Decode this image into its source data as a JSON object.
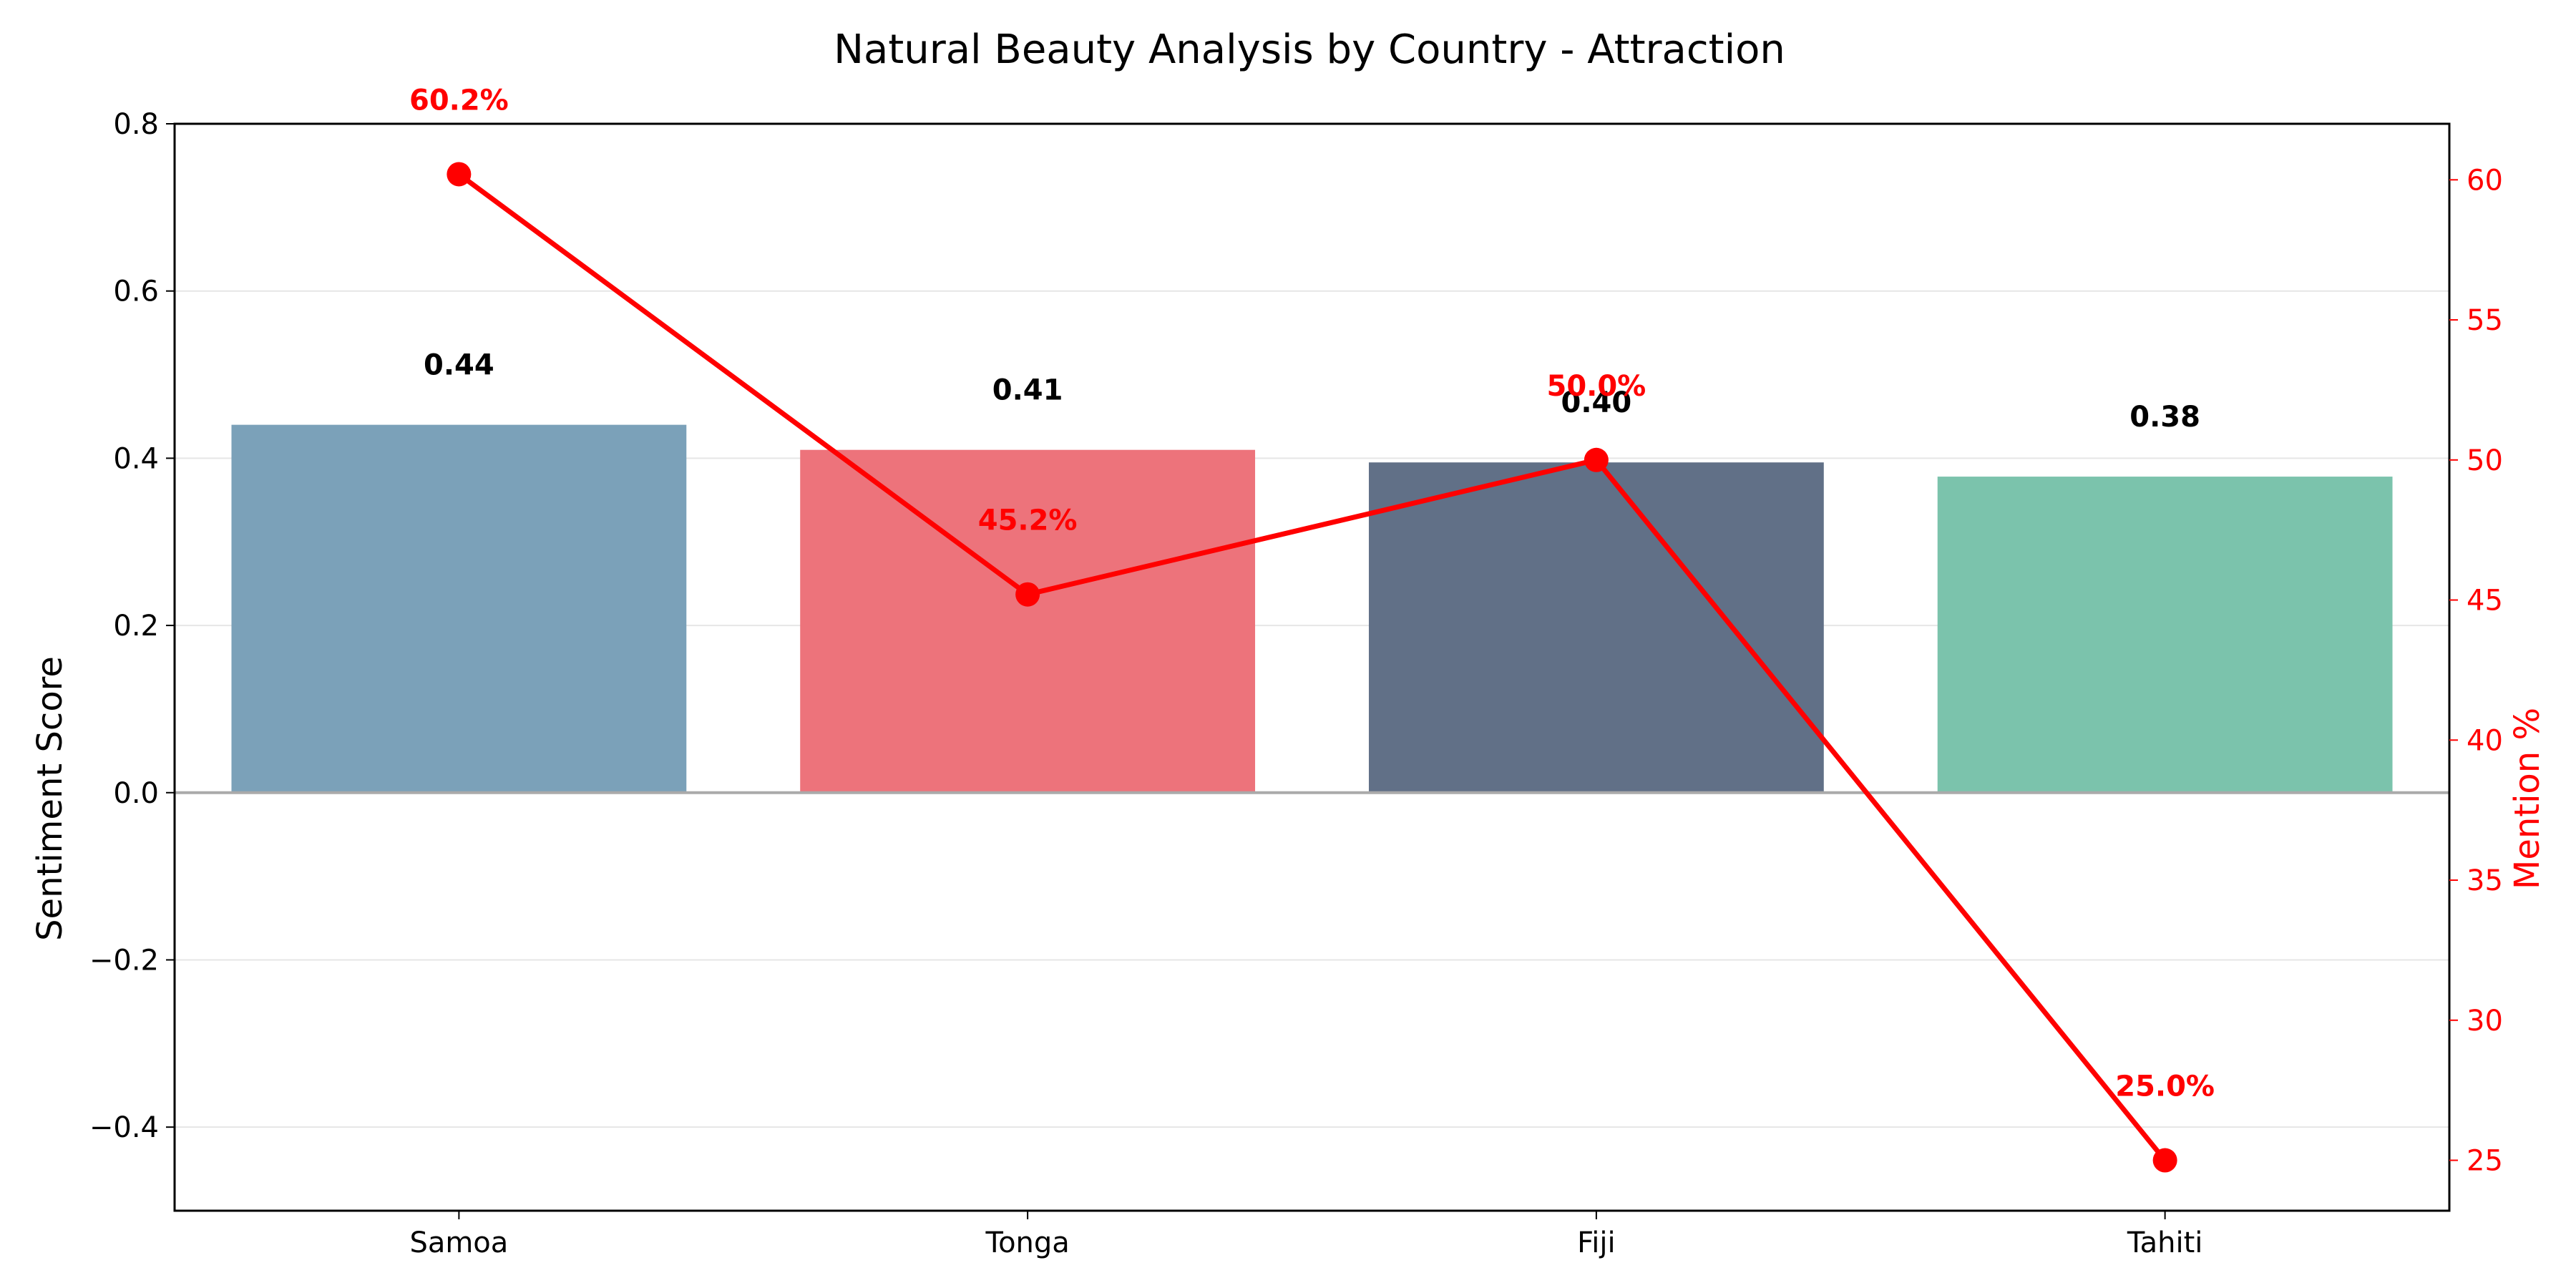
{
  "chart_data": {
    "type": "bar",
    "title": "Natural Beauty Analysis by Country - Attraction",
    "categories": [
      "Samoa",
      "Tonga",
      "Fiji",
      "Tahiti"
    ],
    "ylabel": "Sentiment Score",
    "ylabel_right": "Mention %",
    "ylim": [
      -0.5,
      0.8
    ],
    "ylim_right": [
      23.2,
      62.0
    ],
    "yticks": [
      "0.8",
      "0.6",
      "0.4",
      "0.2",
      "0.0",
      "−0.2",
      "−0.4"
    ],
    "yticks_right": [
      "60",
      "55",
      "50",
      "45",
      "40",
      "35",
      "30",
      "25"
    ],
    "grid": true,
    "series": [
      {
        "type": "bar",
        "values": [
          0.44,
          0.41,
          0.395,
          0.378
        ],
        "labels": [
          "0.44",
          "0.41",
          "0.40",
          "0.38"
        ],
        "colors": [
          "#7BA1B9",
          "#ED737B",
          "#617087",
          "#7BC3AC"
        ]
      },
      {
        "type": "line",
        "axis": "right",
        "values": [
          60.2,
          45.2,
          50.0,
          25.0
        ],
        "labels": [
          "60.2%",
          "45.2%",
          "50.0%",
          "25.0%"
        ],
        "color": "#FF0000"
      }
    ]
  }
}
